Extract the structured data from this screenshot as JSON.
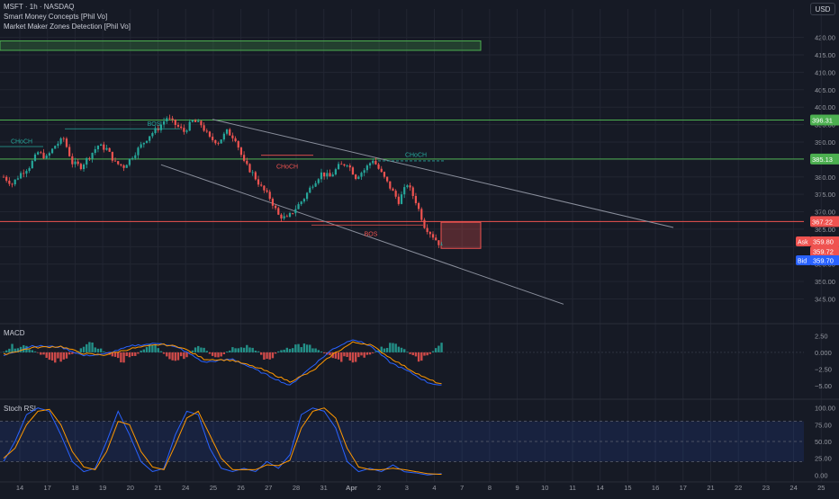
{
  "header": {
    "symbol_line": "MSFT · 1h · NASDAQ",
    "indicator_1": "Smart Money Concepts [Phil Vo]",
    "indicator_2": "Market Maker Zones Detection [Phil Vo]",
    "currency": "USD"
  },
  "colors": {
    "background": "#161a25",
    "grid": "#222632",
    "candle_up": "#26a69a",
    "candle_down": "#ef5350",
    "resistance_line": "#4caf50",
    "support_line": "#ef5350",
    "channel_line": "#8a8f9c",
    "macd_line": "#2962ff",
    "signal_line": "#ff9800",
    "rsi_k": "#2962ff",
    "rsi_d": "#ff9800"
  },
  "chart_data": {
    "type": "candlestick",
    "symbol": "MSFT",
    "interval": "1h",
    "exchange": "NASDAQ",
    "price_axis_ticks": [
      "420.00",
      "415.00",
      "410.00",
      "405.00",
      "400.00",
      "395.00",
      "390.00",
      "385.00",
      "380.00",
      "375.00",
      "370.00",
      "365.00",
      "360.00",
      "355.00",
      "350.00",
      "345.00"
    ],
    "ylim": [
      341,
      423
    ],
    "x_tick_labels": [
      "14",
      "17",
      "18",
      "19",
      "20",
      "21",
      "24",
      "25",
      "26",
      "27",
      "28",
      "31",
      "Apr",
      "2",
      "3",
      "4",
      "7",
      "8",
      "9",
      "10",
      "11",
      "14",
      "15",
      "16",
      "17",
      "21",
      "22",
      "23",
      "24",
      "25"
    ],
    "price_path": [
      [
        0,
        380
      ],
      [
        3,
        378
      ],
      [
        6,
        381
      ],
      [
        9,
        383
      ],
      [
        12,
        387
      ],
      [
        15,
        385.5
      ],
      [
        18,
        389
      ],
      [
        21,
        391
      ],
      [
        24,
        384
      ],
      [
        27,
        383
      ],
      [
        30,
        386
      ],
      [
        33,
        389
      ],
      [
        36,
        388
      ],
      [
        39,
        384
      ],
      [
        42,
        383
      ],
      [
        45,
        386
      ],
      [
        48,
        389
      ],
      [
        51,
        392
      ],
      [
        54,
        394
      ],
      [
        57,
        397
      ],
      [
        60,
        395
      ],
      [
        63,
        393
      ],
      [
        66,
        396
      ],
      [
        69,
        395
      ],
      [
        72,
        391
      ],
      [
        75,
        390
      ],
      [
        78,
        393
      ],
      [
        81,
        391
      ],
      [
        84,
        384
      ],
      [
        87,
        381
      ],
      [
        90,
        377
      ],
      [
        93,
        374
      ],
      [
        96,
        369
      ],
      [
        99,
        368
      ],
      [
        102,
        371
      ],
      [
        105,
        374
      ],
      [
        108,
        378
      ],
      [
        111,
        381
      ],
      [
        114,
        380
      ],
      [
        117,
        383
      ],
      [
        120,
        384
      ],
      [
        123,
        380
      ],
      [
        126,
        382
      ],
      [
        129,
        385
      ],
      [
        132,
        381
      ],
      [
        135,
        377
      ],
      [
        138,
        373
      ],
      [
        141,
        378
      ],
      [
        144,
        373
      ],
      [
        147,
        366
      ],
      [
        150,
        363
      ],
      [
        153,
        360
      ]
    ],
    "horizontal_levels": [
      {
        "price": 396.31,
        "label": "396.31",
        "color": "#4caf50"
      },
      {
        "price": 385.13,
        "label": "385.13",
        "color": "#4caf50"
      },
      {
        "price": 367.22,
        "label": "367.22",
        "color": "#ef5350"
      }
    ],
    "price_badges": [
      {
        "label": "Ask",
        "value": "359.80",
        "color": "#ef5350"
      },
      {
        "value": "359.72",
        "color": "#ef5350"
      },
      {
        "label": "Bid",
        "value": "359.70",
        "color": "#2962ff"
      }
    ],
    "annotations": [
      {
        "text": "BOS",
        "color": "#26a69a"
      },
      {
        "text": "CHoCH",
        "color": "#26a69a"
      },
      {
        "text": "CHoCH",
        "color": "#ef5350"
      },
      {
        "text": "CHoCH",
        "color": "#26a69a"
      },
      {
        "text": "BOS",
        "color": "#ef5350"
      }
    ],
    "zones": [
      {
        "type": "supply",
        "top": 419.0,
        "bottom": 416.3,
        "color": "#4caf50"
      },
      {
        "type": "demand",
        "top": 367.0,
        "bottom": 359.5,
        "color": "#ef5350"
      }
    ],
    "macd": {
      "title": "MACD",
      "axis_ticks": [
        "2.50",
        "0.000",
        "−2.50",
        "−5.00"
      ],
      "ylim": [
        -6.5,
        3.5
      ],
      "histogram_sign_runs": [
        [
          1,
          12
        ],
        [
          -1,
          14
        ],
        [
          1,
          10
        ],
        [
          -1,
          12
        ],
        [
          1,
          8
        ],
        [
          -1,
          10
        ],
        [
          1,
          6
        ],
        [
          -1,
          6
        ],
        [
          1,
          12
        ],
        [
          -1,
          6
        ],
        [
          1,
          16
        ],
        [
          -1,
          18
        ],
        [
          1,
          12
        ],
        [
          -1,
          8
        ],
        [
          1,
          6
        ]
      ],
      "macd_path": [
        [
          0,
          -0.5
        ],
        [
          10,
          1
        ],
        [
          20,
          0.8
        ],
        [
          28,
          -0.5
        ],
        [
          35,
          -0.3
        ],
        [
          45,
          1
        ],
        [
          55,
          1.4
        ],
        [
          62,
          0.5
        ],
        [
          70,
          -1.5
        ],
        [
          80,
          -1
        ],
        [
          90,
          -3
        ],
        [
          100,
          -5
        ],
        [
          108,
          -2
        ],
        [
          115,
          0.5
        ],
        [
          122,
          2
        ],
        [
          128,
          1
        ],
        [
          135,
          -1.5
        ],
        [
          142,
          -3
        ],
        [
          148,
          -4.5
        ],
        [
          153,
          -5
        ]
      ],
      "signal_path": [
        [
          0,
          -0.3
        ],
        [
          10,
          0.7
        ],
        [
          20,
          0.9
        ],
        [
          28,
          -0.2
        ],
        [
          35,
          -0.4
        ],
        [
          45,
          0.6
        ],
        [
          55,
          1.2
        ],
        [
          62,
          0.8
        ],
        [
          70,
          -1
        ],
        [
          80,
          -1.2
        ],
        [
          90,
          -2.5
        ],
        [
          100,
          -4.4
        ],
        [
          108,
          -2.8
        ],
        [
          115,
          -0.3
        ],
        [
          122,
          1.5
        ],
        [
          128,
          1.2
        ],
        [
          135,
          -0.8
        ],
        [
          142,
          -2.6
        ],
        [
          148,
          -4
        ],
        [
          153,
          -4.8
        ]
      ]
    },
    "stoch_rsi": {
      "title": "Stoch RSI",
      "axis_ticks": [
        "100.00",
        "75.00",
        "50.00",
        "25.00",
        "0.00"
      ],
      "ylim": [
        -5,
        105
      ],
      "k_path": [
        [
          0,
          20
        ],
        [
          4,
          50
        ],
        [
          8,
          90
        ],
        [
          12,
          100
        ],
        [
          16,
          95
        ],
        [
          20,
          60
        ],
        [
          24,
          20
        ],
        [
          28,
          5
        ],
        [
          32,
          10
        ],
        [
          36,
          50
        ],
        [
          40,
          95
        ],
        [
          44,
          60
        ],
        [
          48,
          20
        ],
        [
          52,
          5
        ],
        [
          56,
          10
        ],
        [
          60,
          60
        ],
        [
          64,
          95
        ],
        [
          68,
          90
        ],
        [
          72,
          40
        ],
        [
          76,
          10
        ],
        [
          80,
          5
        ],
        [
          84,
          10
        ],
        [
          88,
          5
        ],
        [
          92,
          20
        ],
        [
          96,
          10
        ],
        [
          100,
          30
        ],
        [
          104,
          90
        ],
        [
          108,
          100
        ],
        [
          112,
          95
        ],
        [
          116,
          70
        ],
        [
          120,
          20
        ],
        [
          124,
          5
        ],
        [
          128,
          10
        ],
        [
          132,
          5
        ],
        [
          136,
          15
        ],
        [
          140,
          5
        ],
        [
          144,
          3
        ],
        [
          148,
          0
        ],
        [
          153,
          2
        ]
      ],
      "d_path": [
        [
          0,
          25
        ],
        [
          4,
          40
        ],
        [
          8,
          75
        ],
        [
          12,
          95
        ],
        [
          16,
          98
        ],
        [
          20,
          75
        ],
        [
          24,
          35
        ],
        [
          28,
          12
        ],
        [
          32,
          8
        ],
        [
          36,
          35
        ],
        [
          40,
          80
        ],
        [
          44,
          75
        ],
        [
          48,
          35
        ],
        [
          52,
          12
        ],
        [
          56,
          8
        ],
        [
          60,
          45
        ],
        [
          64,
          85
        ],
        [
          68,
          95
        ],
        [
          72,
          60
        ],
        [
          76,
          25
        ],
        [
          80,
          8
        ],
        [
          84,
          8
        ],
        [
          88,
          8
        ],
        [
          92,
          15
        ],
        [
          96,
          14
        ],
        [
          100,
          22
        ],
        [
          104,
          70
        ],
        [
          108,
          95
        ],
        [
          112,
          100
        ],
        [
          116,
          85
        ],
        [
          120,
          40
        ],
        [
          124,
          12
        ],
        [
          128,
          8
        ],
        [
          132,
          8
        ],
        [
          136,
          10
        ],
        [
          140,
          8
        ],
        [
          144,
          5
        ],
        [
          148,
          2
        ],
        [
          153,
          1
        ]
      ]
    }
  }
}
